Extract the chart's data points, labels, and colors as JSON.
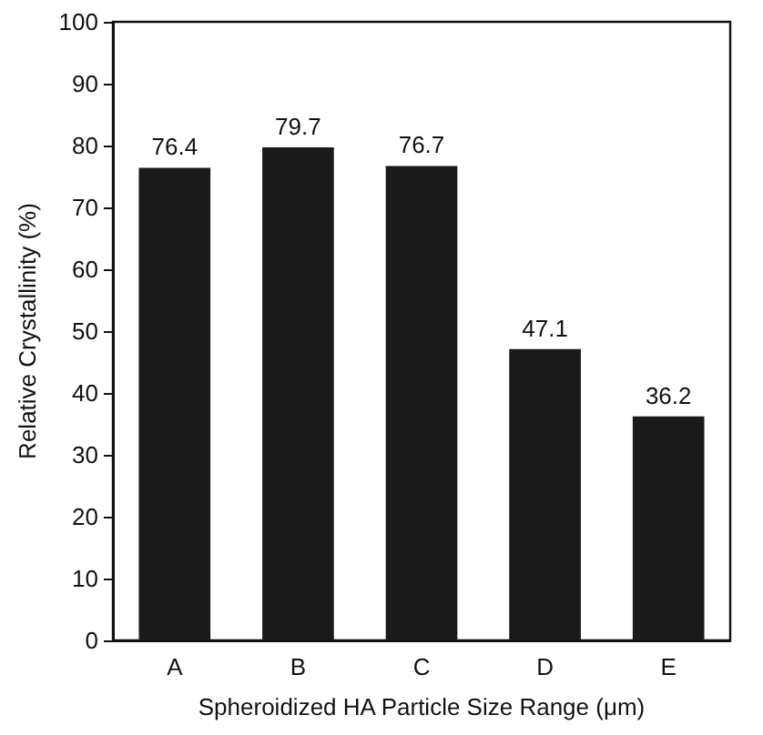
{
  "chart_data": {
    "type": "bar",
    "categories": [
      "A",
      "B",
      "C",
      "D",
      "E"
    ],
    "values": [
      76.4,
      79.7,
      76.7,
      47.1,
      36.2
    ],
    "color": "#1a1a1a",
    "xlabel": "Spheroidized HA Particle Size Range (μm)",
    "ylabel": "Relative Crystallinity (%)",
    "ylim": [
      0,
      100
    ],
    "yticks": [
      0,
      10,
      20,
      30,
      40,
      50,
      60,
      70,
      80,
      90,
      100
    ],
    "data_labels": true,
    "grid": false
  }
}
